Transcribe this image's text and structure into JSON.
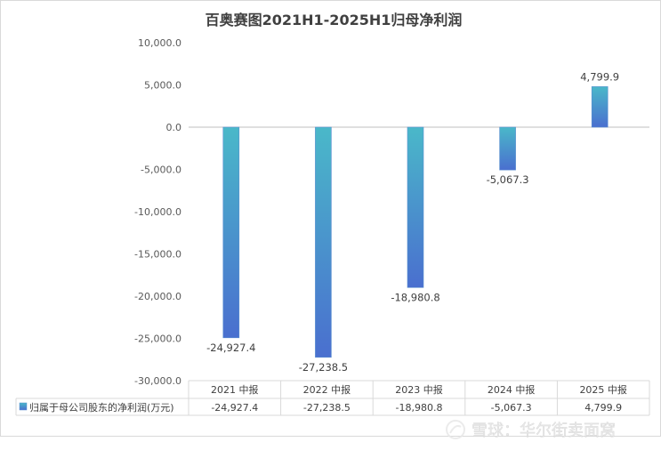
{
  "chart_data": {
    "type": "bar",
    "title": "百奥赛图2021H1-2025H1归母净利润",
    "categories": [
      "2021 中报",
      "2022 中报",
      "2023 中报",
      "2024 中报",
      "2025 中报"
    ],
    "series": [
      {
        "name": "归属于母公司股东的净利润(万元)",
        "values": [
          -24927.4,
          -27238.5,
          -18980.8,
          -5067.3,
          4799.9
        ]
      }
    ],
    "data_labels": [
      "-24,927.4",
      "-27,238.5",
      "-18,980.8",
      "-5,067.3",
      "4,799.9"
    ],
    "table_values": [
      "-24,927.4",
      "-27,238.5",
      "-18,980.8",
      "-5,067.3",
      "4,799.9"
    ],
    "ylim": [
      -30000,
      10000
    ],
    "yticks": [
      10000,
      5000,
      0,
      -5000,
      -10000,
      -15000,
      -20000,
      -25000,
      -30000
    ],
    "ytick_labels": [
      "10,000.0",
      "5,000.0",
      "0.0",
      "-5,000.0",
      "-10,000.0",
      "-15,000.0",
      "-20,000.0",
      "-25,000.0",
      "-30,000.0"
    ],
    "grid": false,
    "legend": "data-table"
  },
  "watermark": {
    "text": "雪球：华尔街卖面窝"
  },
  "colors": {
    "bar_top": "#4ab8c9",
    "bar_bottom": "#4a6fcf",
    "axis": "#bfbfbf",
    "title": "#404040"
  }
}
